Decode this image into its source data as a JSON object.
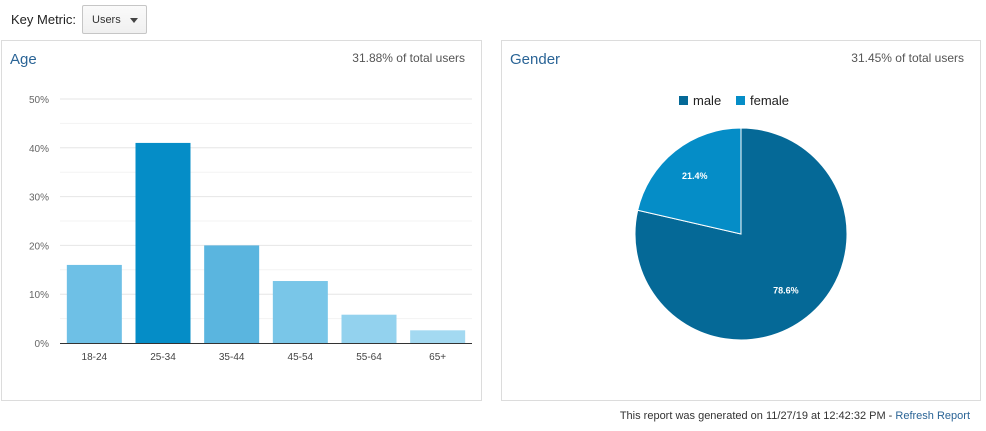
{
  "key_metric": {
    "label": "Key Metric:",
    "selected": "Users"
  },
  "age_panel": {
    "title": "Age",
    "subtitle": "31.88% of total users"
  },
  "gender_panel": {
    "title": "Gender",
    "subtitle": "31.45% of total users"
  },
  "footer": {
    "text": "This report was generated on 11/27/19 at 12:42:32 PM - ",
    "link": "Refresh Report"
  },
  "chart_data": [
    {
      "type": "bar",
      "title": "Age",
      "categories": [
        "18-24",
        "25-34",
        "35-44",
        "45-54",
        "55-64",
        "65+"
      ],
      "values": [
        16.0,
        41.0,
        20.0,
        12.7,
        5.8,
        2.6
      ],
      "ylim": [
        0,
        50
      ],
      "yticks": [
        "0%",
        "10%",
        "20%",
        "30%",
        "40%",
        "50%"
      ],
      "ytick_values": [
        0,
        10,
        20,
        30,
        40,
        50
      ],
      "grid": true,
      "colors": [
        "#6ec0e6",
        "#058dc7",
        "#5ab5df",
        "#79c6e8",
        "#93d2ee",
        "#a3d9f1"
      ]
    },
    {
      "type": "pie",
      "title": "Gender",
      "labels": [
        "male",
        "female"
      ],
      "values": [
        78.6,
        21.4
      ],
      "value_labels": [
        "78.6%",
        "21.4%"
      ],
      "colors": [
        "#056997",
        "#058dc7"
      ],
      "legend": "top"
    }
  ]
}
